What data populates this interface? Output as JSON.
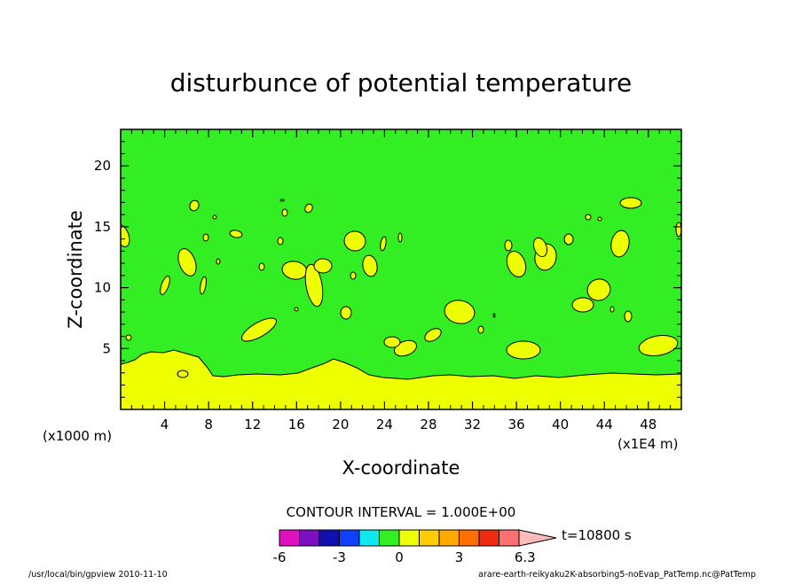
{
  "chart_data": {
    "type": "heatmap",
    "title": "disturbunce of potential temperature",
    "xlabel": "X-coordinate",
    "ylabel": "Z-coordinate",
    "x_unit_left": "(x1000 m)",
    "x_unit_right": "(x1E4 m)",
    "xlim": [
      0,
      51
    ],
    "ylim": [
      0,
      23
    ],
    "x_ticks": [
      "4",
      "8",
      "12",
      "16",
      "20",
      "24",
      "28",
      "32",
      "36",
      "40",
      "44",
      "48"
    ],
    "y_ticks": [
      "5",
      "10",
      "15",
      "20"
    ],
    "contour_interval_label": "CONTOUR INTERVAL = 1.000E+00",
    "time_label": "t=10800 s",
    "colorbar": {
      "levels": [
        -6,
        -5,
        -4,
        -3,
        -2,
        -1,
        0,
        1,
        2,
        3,
        4,
        5,
        6
      ],
      "colors": [
        "#e010c0",
        "#7a10c0",
        "#1010b0",
        "#1040ff",
        "#10e8f0",
        "#33ee22",
        "#eeff00",
        "#ffcc00",
        "#ffa800",
        "#ff7000",
        "#ee2a10",
        "#ff7070",
        "#ffbbbb"
      ],
      "tick_labels": [
        "-6",
        "-3",
        "0",
        "3",
        "6.3"
      ],
      "extend": "max"
    },
    "bands_shown": [
      {
        "range": [
          0,
          1
        ],
        "color": "#33ee22",
        "description": "background field"
      },
      {
        "range": [
          1,
          2
        ],
        "color": "#eeff00",
        "description": "near-surface layer below about z=4 and scattered cells aloft"
      }
    ],
    "footer_left": "/usr/local/bin/gpview  2010-11-10",
    "footer_right": "arare-earth-reikyaku2K-absorbing5-noEvap_PatTemp.nc@PatTemp"
  }
}
